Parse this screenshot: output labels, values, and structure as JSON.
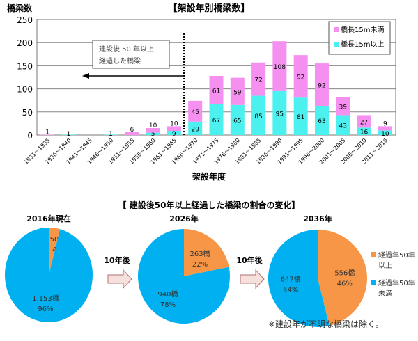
{
  "chart_data": [
    {
      "type": "bar",
      "stacked": true,
      "title": "【架設年別橋梁数】",
      "ylabel": "橋梁数",
      "xlabel": "架設年度",
      "ylim": [
        0,
        250
      ],
      "yticks": [
        0,
        50,
        100,
        150,
        200,
        250
      ],
      "grid": true,
      "legend_position": "top-right",
      "categories": [
        "1931～1935",
        "1936～1940",
        "1941～1945",
        "1946～1950",
        "1951～1955",
        "1956～1960",
        "1961～1965",
        "1966～1970",
        "1971～1975",
        "1976～1980",
        "1981～1985",
        "1986～1990",
        "1991～1995",
        "1996～2000",
        "2001～2005",
        "2006～2010",
        "2011～2016"
      ],
      "series": [
        {
          "name": "橋長15m以上",
          "color": "#4cf0ee",
          "values": [
            0,
            1,
            0,
            1,
            0,
            5,
            9,
            29,
            67,
            65,
            85,
            95,
            81,
            63,
            43,
            16,
            10
          ]
        },
        {
          "name": "橋長15m未満",
          "color": "#f590f0",
          "values": [
            1,
            0,
            0,
            0,
            6,
            10,
            10,
            45,
            61,
            59,
            72,
            108,
            92,
            92,
            39,
            27,
            9
          ]
        }
      ],
      "annotation": {
        "line1": "建設後 50 年以上",
        "line2": "経過した橋梁"
      }
    },
    {
      "type": "pie",
      "title": "【 建設後50年以上経過した橋梁の割合の変化】",
      "pies": [
        {
          "title": "2016年現在",
          "slices": [
            {
              "label": "50橋",
              "pct": "4%",
              "value": 50
            },
            {
              "label": "1,153橋",
              "pct": "96%",
              "value": 1153
            }
          ]
        },
        {
          "title": "2026年",
          "slices": [
            {
              "label": "263橋",
              "pct": "22%",
              "value": 263
            },
            {
              "label": "940橋",
              "pct": "78%",
              "value": 940
            }
          ]
        },
        {
          "title": "2036年",
          "slices": [
            {
              "label": "556橋",
              "pct": "46%",
              "value": 556
            },
            {
              "label": "647橋",
              "pct": "54%",
              "value": 647
            }
          ]
        }
      ],
      "arrow_label": "10年後",
      "legend": [
        {
          "name1": "経過年50年",
          "name2": "以上",
          "color": "#f79646"
        },
        {
          "name1": "経過年50年",
          "name2": "未満",
          "color": "#00b0f0"
        }
      ],
      "note": "※建設年が不明な橋梁は除く。"
    }
  ]
}
